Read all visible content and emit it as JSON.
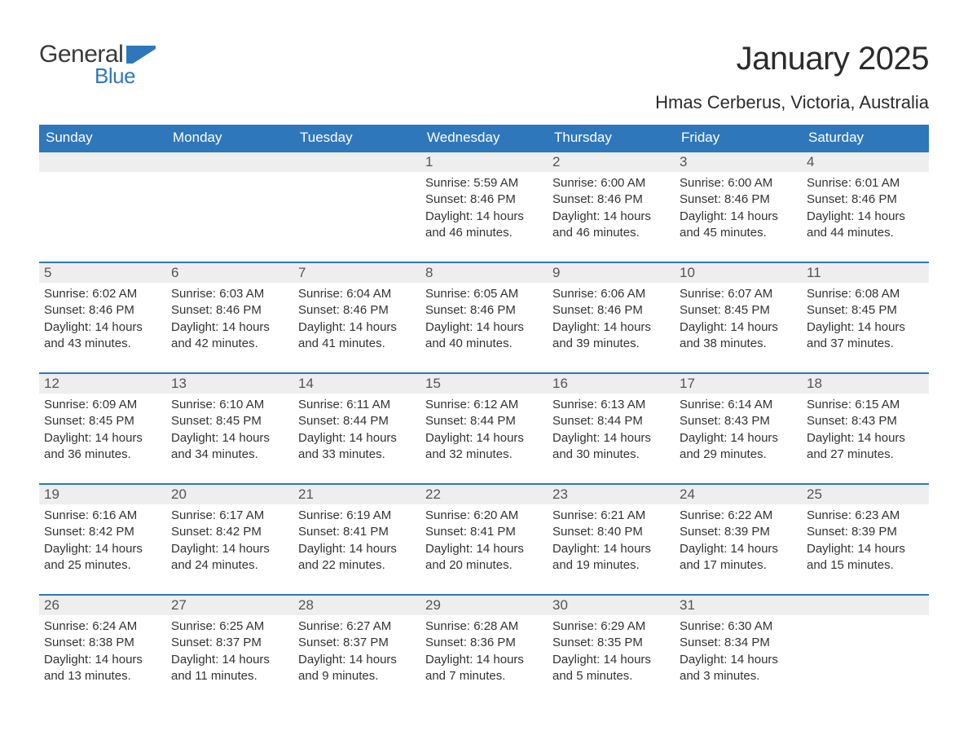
{
  "logo": {
    "text1": "General",
    "text2": "Blue",
    "flag_color": "#2f77bb"
  },
  "title": "January 2025",
  "location": "Hmas Cerberus, Victoria, Australia",
  "colors": {
    "header_bg": "#2f77bb",
    "header_text": "#ffffff",
    "daynum_bg": "#eeeeee",
    "row_divider": "#2f77bb",
    "body_text": "#333333",
    "background": "#ffffff"
  },
  "day_headers": [
    "Sunday",
    "Monday",
    "Tuesday",
    "Wednesday",
    "Thursday",
    "Friday",
    "Saturday"
  ],
  "weeks": [
    [
      null,
      null,
      null,
      {
        "n": "1",
        "sunrise": "5:59 AM",
        "sunset": "8:46 PM",
        "daylight": "14 hours and 46 minutes."
      },
      {
        "n": "2",
        "sunrise": "6:00 AM",
        "sunset": "8:46 PM",
        "daylight": "14 hours and 46 minutes."
      },
      {
        "n": "3",
        "sunrise": "6:00 AM",
        "sunset": "8:46 PM",
        "daylight": "14 hours and 45 minutes."
      },
      {
        "n": "4",
        "sunrise": "6:01 AM",
        "sunset": "8:46 PM",
        "daylight": "14 hours and 44 minutes."
      }
    ],
    [
      {
        "n": "5",
        "sunrise": "6:02 AM",
        "sunset": "8:46 PM",
        "daylight": "14 hours and 43 minutes."
      },
      {
        "n": "6",
        "sunrise": "6:03 AM",
        "sunset": "8:46 PM",
        "daylight": "14 hours and 42 minutes."
      },
      {
        "n": "7",
        "sunrise": "6:04 AM",
        "sunset": "8:46 PM",
        "daylight": "14 hours and 41 minutes."
      },
      {
        "n": "8",
        "sunrise": "6:05 AM",
        "sunset": "8:46 PM",
        "daylight": "14 hours and 40 minutes."
      },
      {
        "n": "9",
        "sunrise": "6:06 AM",
        "sunset": "8:46 PM",
        "daylight": "14 hours and 39 minutes."
      },
      {
        "n": "10",
        "sunrise": "6:07 AM",
        "sunset": "8:45 PM",
        "daylight": "14 hours and 38 minutes."
      },
      {
        "n": "11",
        "sunrise": "6:08 AM",
        "sunset": "8:45 PM",
        "daylight": "14 hours and 37 minutes."
      }
    ],
    [
      {
        "n": "12",
        "sunrise": "6:09 AM",
        "sunset": "8:45 PM",
        "daylight": "14 hours and 36 minutes."
      },
      {
        "n": "13",
        "sunrise": "6:10 AM",
        "sunset": "8:45 PM",
        "daylight": "14 hours and 34 minutes."
      },
      {
        "n": "14",
        "sunrise": "6:11 AM",
        "sunset": "8:44 PM",
        "daylight": "14 hours and 33 minutes."
      },
      {
        "n": "15",
        "sunrise": "6:12 AM",
        "sunset": "8:44 PM",
        "daylight": "14 hours and 32 minutes."
      },
      {
        "n": "16",
        "sunrise": "6:13 AM",
        "sunset": "8:44 PM",
        "daylight": "14 hours and 30 minutes."
      },
      {
        "n": "17",
        "sunrise": "6:14 AM",
        "sunset": "8:43 PM",
        "daylight": "14 hours and 29 minutes."
      },
      {
        "n": "18",
        "sunrise": "6:15 AM",
        "sunset": "8:43 PM",
        "daylight": "14 hours and 27 minutes."
      }
    ],
    [
      {
        "n": "19",
        "sunrise": "6:16 AM",
        "sunset": "8:42 PM",
        "daylight": "14 hours and 25 minutes."
      },
      {
        "n": "20",
        "sunrise": "6:17 AM",
        "sunset": "8:42 PM",
        "daylight": "14 hours and 24 minutes."
      },
      {
        "n": "21",
        "sunrise": "6:19 AM",
        "sunset": "8:41 PM",
        "daylight": "14 hours and 22 minutes."
      },
      {
        "n": "22",
        "sunrise": "6:20 AM",
        "sunset": "8:41 PM",
        "daylight": "14 hours and 20 minutes."
      },
      {
        "n": "23",
        "sunrise": "6:21 AM",
        "sunset": "8:40 PM",
        "daylight": "14 hours and 19 minutes."
      },
      {
        "n": "24",
        "sunrise": "6:22 AM",
        "sunset": "8:39 PM",
        "daylight": "14 hours and 17 minutes."
      },
      {
        "n": "25",
        "sunrise": "6:23 AM",
        "sunset": "8:39 PM",
        "daylight": "14 hours and 15 minutes."
      }
    ],
    [
      {
        "n": "26",
        "sunrise": "6:24 AM",
        "sunset": "8:38 PM",
        "daylight": "14 hours and 13 minutes."
      },
      {
        "n": "27",
        "sunrise": "6:25 AM",
        "sunset": "8:37 PM",
        "daylight": "14 hours and 11 minutes."
      },
      {
        "n": "28",
        "sunrise": "6:27 AM",
        "sunset": "8:37 PM",
        "daylight": "14 hours and 9 minutes."
      },
      {
        "n": "29",
        "sunrise": "6:28 AM",
        "sunset": "8:36 PM",
        "daylight": "14 hours and 7 minutes."
      },
      {
        "n": "30",
        "sunrise": "6:29 AM",
        "sunset": "8:35 PM",
        "daylight": "14 hours and 5 minutes."
      },
      {
        "n": "31",
        "sunrise": "6:30 AM",
        "sunset": "8:34 PM",
        "daylight": "14 hours and 3 minutes."
      },
      null
    ]
  ],
  "labels": {
    "sunrise": "Sunrise: ",
    "sunset": "Sunset: ",
    "daylight": "Daylight: "
  }
}
